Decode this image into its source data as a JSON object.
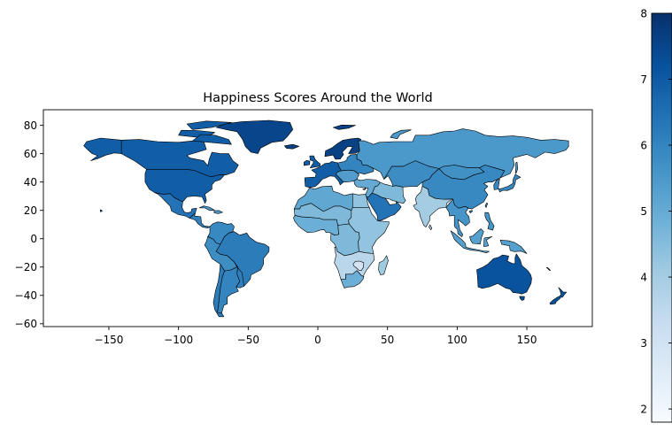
{
  "chart_data": {
    "type": "choropleth",
    "title": "Happiness Scores Around the World",
    "xlabel": "",
    "ylabel": "",
    "xlim": [
      -197,
      197
    ],
    "ylim": [
      -62,
      91
    ],
    "x_ticks": [
      -150,
      -100,
      -50,
      0,
      50,
      100,
      150
    ],
    "y_ticks": [
      -60,
      -40,
      -20,
      0,
      20,
      40,
      60,
      80
    ],
    "x_tick_labels": [
      "−150",
      "−100",
      "−50",
      "0",
      "50",
      "100",
      "150"
    ],
    "y_tick_labels": [
      "−60",
      "−40",
      "−20",
      "0",
      "20",
      "40",
      "60",
      "80"
    ],
    "colorbar": {
      "cmap": "Blues",
      "vmin": 1.8,
      "vmax": 8.0,
      "ticks": [
        2,
        3,
        4,
        5,
        6,
        7,
        8
      ],
      "tick_labels": [
        "2",
        "3",
        "4",
        "5",
        "6",
        "7",
        "8"
      ]
    },
    "grid": false,
    "regions": [
      {
        "region": "Canada",
        "score": 6.9
      },
      {
        "region": "United States",
        "score": 6.9
      },
      {
        "region": "Alaska",
        "score": 6.9
      },
      {
        "region": "Greenland",
        "score": 7.5
      },
      {
        "region": "Mexico",
        "score": 6.4
      },
      {
        "region": "Central America",
        "score": 6.1
      },
      {
        "region": "Cuba",
        "score": 5.5
      },
      {
        "region": "Colombia & Venezuela",
        "score": 5.9
      },
      {
        "region": "Brazil",
        "score": 6.2
      },
      {
        "region": "Peru & Bolivia",
        "score": 5.8
      },
      {
        "region": "Chile",
        "score": 6.2
      },
      {
        "region": "Argentina",
        "score": 6.0
      },
      {
        "region": "Uruguay & Paraguay",
        "score": 6.1
      },
      {
        "region": "Nordic countries",
        "score": 7.6
      },
      {
        "region": "Western Europe",
        "score": 6.9
      },
      {
        "region": "Eastern Europe",
        "score": 6.0
      },
      {
        "region": "Balkans",
        "score": 5.4
      },
      {
        "region": "Russia",
        "score": 5.5
      },
      {
        "region": "North Africa",
        "score": 5.1
      },
      {
        "region": "Egypt",
        "score": 4.3
      },
      {
        "region": "West Africa",
        "score": 4.9
      },
      {
        "region": "Sahel",
        "score": 4.6
      },
      {
        "region": "Central Africa",
        "score": 4.6
      },
      {
        "region": "East Africa",
        "score": 4.3
      },
      {
        "region": "Southern Africa",
        "score": 3.6
      },
      {
        "region": "Zimbabwe",
        "score": 2.9
      },
      {
        "region": "South Africa",
        "score": 4.9
      },
      {
        "region": "Madagascar",
        "score": 4.1
      },
      {
        "region": "Arabian Peninsula",
        "score": 6.4
      },
      {
        "region": "Iran & Iraq",
        "score": 4.6
      },
      {
        "region": "Turkey & Levant",
        "score": 5.0
      },
      {
        "region": "Central Asia",
        "score": 5.8
      },
      {
        "region": "Mongolia",
        "score": 5.7
      },
      {
        "region": "China",
        "score": 5.9
      },
      {
        "region": "India",
        "score": 4.0
      },
      {
        "region": "Southeast Asia",
        "score": 5.6
      },
      {
        "region": "Japan & Korea",
        "score": 5.9
      },
      {
        "region": "Indonesia",
        "score": 5.3
      },
      {
        "region": "Australia",
        "score": 7.2
      },
      {
        "region": "New Zealand",
        "score": 7.2
      }
    ]
  }
}
